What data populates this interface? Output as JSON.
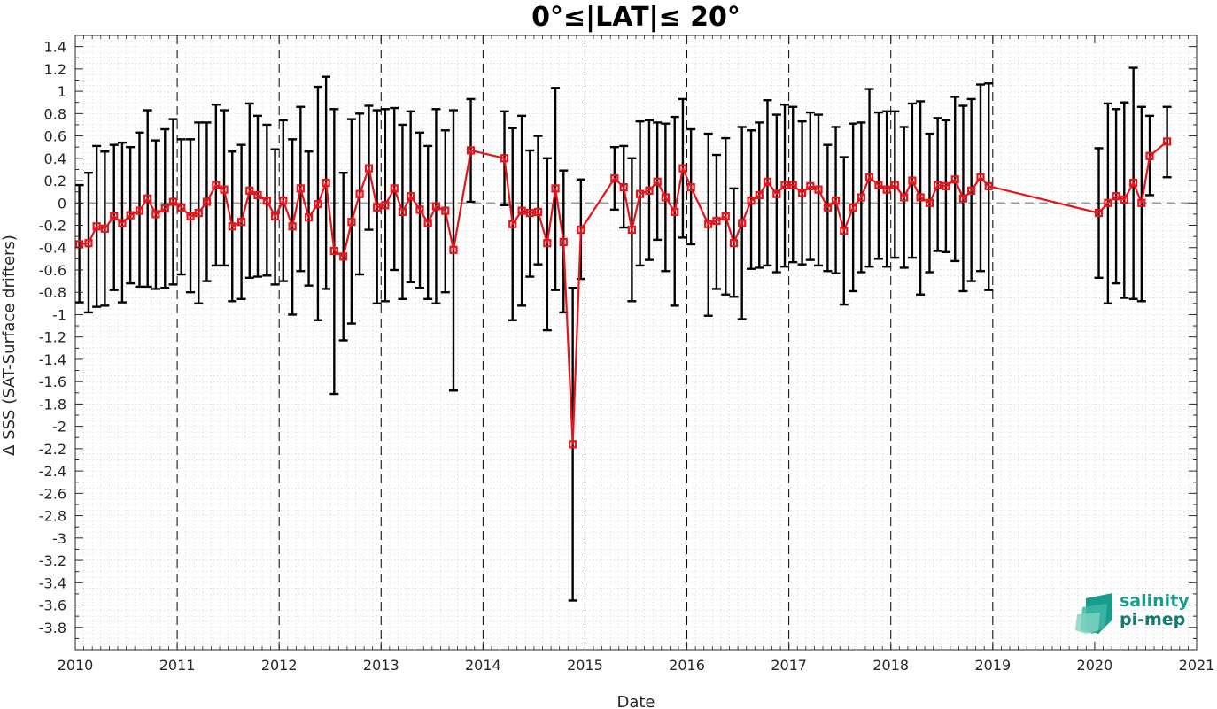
{
  "chart_data": {
    "type": "line",
    "title": "0°≤|LAT|≤ 20°",
    "xlabel": "Date",
    "ylabel": "Δ SSS (SAT-Surface drifters)",
    "xlim": [
      2010,
      2021
    ],
    "ylim": [
      -4.0,
      1.5
    ],
    "x_ticks": [
      2010,
      2011,
      2012,
      2013,
      2014,
      2015,
      2016,
      2017,
      2018,
      2019,
      2020,
      2021
    ],
    "y_ticks": [
      1.4,
      1.2,
      1,
      0.8,
      0.6,
      0.4,
      0.2,
      0,
      -0.2,
      -0.4,
      -0.6,
      -0.8,
      -1,
      -1.2,
      -1.4,
      -1.6,
      -1.8,
      -2,
      -2.2,
      -2.4,
      -2.6,
      -2.8,
      -3,
      -3.2,
      -3.4,
      -3.6,
      -3.8
    ],
    "year_lines": [
      2011,
      2012,
      2013,
      2014,
      2015,
      2016,
      2017,
      2018,
      2019
    ],
    "zero_line": 0,
    "grid": "dotted-minor",
    "colors": {
      "series": "#e8141b",
      "error_bars": "#000000",
      "zero_line": "#888888",
      "logo_primary": "#1a9c8c",
      "logo_secondary": "#127a6f"
    },
    "series": [
      {
        "marker": "square",
        "points": [
          {
            "x": 2010.04,
            "y": -0.37,
            "lo": -0.89,
            "hi": 0.16
          },
          {
            "x": 2010.13,
            "y": -0.36,
            "lo": -0.98,
            "hi": 0.27
          },
          {
            "x": 2010.21,
            "y": -0.21,
            "lo": -0.93,
            "hi": 0.51
          },
          {
            "x": 2010.29,
            "y": -0.23,
            "lo": -0.92,
            "hi": 0.46
          },
          {
            "x": 2010.38,
            "y": -0.12,
            "lo": -0.78,
            "hi": 0.52
          },
          {
            "x": 2010.46,
            "y": -0.18,
            "lo": -0.89,
            "hi": 0.54
          },
          {
            "x": 2010.54,
            "y": -0.11,
            "lo": -0.72,
            "hi": 0.5
          },
          {
            "x": 2010.63,
            "y": -0.07,
            "lo": -0.75,
            "hi": 0.63
          },
          {
            "x": 2010.71,
            "y": 0.04,
            "lo": -0.75,
            "hi": 0.83
          },
          {
            "x": 2010.79,
            "y": -0.1,
            "lo": -0.77,
            "hi": 0.56
          },
          {
            "x": 2010.88,
            "y": -0.05,
            "lo": -0.76,
            "hi": 0.66
          },
          {
            "x": 2010.96,
            "y": 0.01,
            "lo": -0.73,
            "hi": 0.75
          },
          {
            "x": 2011.04,
            "y": -0.04,
            "lo": -0.64,
            "hi": 0.57
          },
          {
            "x": 2011.13,
            "y": -0.12,
            "lo": -0.8,
            "hi": 0.57
          },
          {
            "x": 2011.21,
            "y": -0.09,
            "lo": -0.9,
            "hi": 0.72
          },
          {
            "x": 2011.29,
            "y": 0.01,
            "lo": -0.7,
            "hi": 0.72
          },
          {
            "x": 2011.38,
            "y": 0.16,
            "lo": -0.56,
            "hi": 0.88
          },
          {
            "x": 2011.46,
            "y": 0.12,
            "lo": -0.56,
            "hi": 0.83
          },
          {
            "x": 2011.54,
            "y": -0.21,
            "lo": -0.88,
            "hi": 0.46
          },
          {
            "x": 2011.63,
            "y": -0.17,
            "lo": -0.86,
            "hi": 0.52
          },
          {
            "x": 2011.71,
            "y": 0.11,
            "lo": -0.67,
            "hi": 0.89
          },
          {
            "x": 2011.79,
            "y": 0.07,
            "lo": -0.66,
            "hi": 0.78
          },
          {
            "x": 2011.88,
            "y": 0.02,
            "lo": -0.65,
            "hi": 0.7
          },
          {
            "x": 2011.96,
            "y": -0.12,
            "lo": -0.73,
            "hi": 0.48
          },
          {
            "x": 2012.04,
            "y": 0.02,
            "lo": -0.7,
            "hi": 0.74
          },
          {
            "x": 2012.13,
            "y": -0.21,
            "lo": -1.0,
            "hi": 0.57
          },
          {
            "x": 2012.21,
            "y": 0.13,
            "lo": -0.61,
            "hi": 0.86
          },
          {
            "x": 2012.29,
            "y": -0.13,
            "lo": -0.74,
            "hi": 0.46
          },
          {
            "x": 2012.38,
            "y": -0.01,
            "lo": -1.05,
            "hi": 1.04
          },
          {
            "x": 2012.46,
            "y": 0.18,
            "lo": -0.77,
            "hi": 1.13
          },
          {
            "x": 2012.54,
            "y": -0.43,
            "lo": -1.71,
            "hi": 0.84
          },
          {
            "x": 2012.63,
            "y": -0.48,
            "lo": -1.23,
            "hi": 0.27
          },
          {
            "x": 2012.71,
            "y": -0.17,
            "lo": -1.08,
            "hi": 0.75
          },
          {
            "x": 2012.79,
            "y": 0.08,
            "lo": -0.64,
            "hi": 0.8
          },
          {
            "x": 2012.88,
            "y": 0.31,
            "lo": -0.24,
            "hi": 0.87
          },
          {
            "x": 2012.96,
            "y": -0.04,
            "lo": -0.9,
            "hi": 0.83
          },
          {
            "x": 2013.04,
            "y": -0.02,
            "lo": -0.88,
            "hi": 0.84
          },
          {
            "x": 2013.13,
            "y": 0.13,
            "lo": -0.6,
            "hi": 0.85
          },
          {
            "x": 2013.21,
            "y": -0.08,
            "lo": -0.86,
            "hi": 0.7
          },
          {
            "x": 2013.29,
            "y": 0.06,
            "lo": -0.71,
            "hi": 0.82
          },
          {
            "x": 2013.38,
            "y": -0.06,
            "lo": -0.76,
            "hi": 0.63
          },
          {
            "x": 2013.46,
            "y": -0.18,
            "lo": -0.86,
            "hi": 0.51
          },
          {
            "x": 2013.54,
            "y": -0.03,
            "lo": -0.9,
            "hi": 0.84
          },
          {
            "x": 2013.63,
            "y": -0.07,
            "lo": -0.8,
            "hi": 0.65
          },
          {
            "x": 2013.71,
            "y": -0.42,
            "lo": -1.68,
            "hi": 0.83
          },
          {
            "x": 2013.88,
            "y": 0.47,
            "lo": 0.01,
            "hi": 0.93
          },
          {
            "x": 2014.21,
            "y": 0.4,
            "lo": -0.02,
            "hi": 0.82
          },
          {
            "x": 2014.29,
            "y": -0.19,
            "lo": -1.05,
            "hi": 0.67
          },
          {
            "x": 2014.38,
            "y": -0.07,
            "lo": -0.92,
            "hi": 0.78
          },
          {
            "x": 2014.46,
            "y": -0.09,
            "lo": -0.66,
            "hi": 0.47
          },
          {
            "x": 2014.54,
            "y": -0.08,
            "lo": -0.55,
            "hi": 0.6
          },
          {
            "x": 2014.63,
            "y": -0.36,
            "lo": -1.14,
            "hi": 0.4
          },
          {
            "x": 2014.71,
            "y": 0.13,
            "lo": -0.78,
            "hi": 1.03
          },
          {
            "x": 2014.79,
            "y": -0.35,
            "lo": -0.98,
            "hi": 0.29
          },
          {
            "x": 2014.88,
            "y": -2.16,
            "lo": -3.56,
            "hi": -0.76
          },
          {
            "x": 2014.96,
            "y": -0.24,
            "lo": -0.68,
            "hi": 0.21
          },
          {
            "x": 2015.29,
            "y": 0.22,
            "lo": -0.06,
            "hi": 0.5
          },
          {
            "x": 2015.38,
            "y": 0.14,
            "lo": -0.22,
            "hi": 0.51
          },
          {
            "x": 2015.46,
            "y": -0.24,
            "lo": -0.88,
            "hi": 0.4
          },
          {
            "x": 2015.54,
            "y": 0.08,
            "lo": -0.56,
            "hi": 0.73
          },
          {
            "x": 2015.63,
            "y": 0.11,
            "lo": -0.51,
            "hi": 0.74
          },
          {
            "x": 2015.71,
            "y": 0.19,
            "lo": -0.33,
            "hi": 0.72
          },
          {
            "x": 2015.79,
            "y": 0.05,
            "lo": -0.61,
            "hi": 0.71
          },
          {
            "x": 2015.88,
            "y": -0.08,
            "lo": -0.92,
            "hi": 0.77
          },
          {
            "x": 2015.96,
            "y": 0.31,
            "lo": -0.31,
            "hi": 0.93
          },
          {
            "x": 2016.04,
            "y": 0.14,
            "lo": -0.37,
            "hi": 0.66
          },
          {
            "x": 2016.21,
            "y": -0.19,
            "lo": -1.01,
            "hi": 0.62
          },
          {
            "x": 2016.29,
            "y": -0.16,
            "lo": -0.77,
            "hi": 0.43
          },
          {
            "x": 2016.38,
            "y": -0.12,
            "lo": -0.82,
            "hi": 0.58
          },
          {
            "x": 2016.46,
            "y": -0.36,
            "lo": -0.84,
            "hi": 0.13
          },
          {
            "x": 2016.54,
            "y": -0.18,
            "lo": -1.04,
            "hi": 0.68
          },
          {
            "x": 2016.63,
            "y": 0.02,
            "lo": -0.59,
            "hi": 0.65
          },
          {
            "x": 2016.71,
            "y": 0.07,
            "lo": -0.58,
            "hi": 0.72
          },
          {
            "x": 2016.79,
            "y": 0.19,
            "lo": -0.56,
            "hi": 0.92
          },
          {
            "x": 2016.88,
            "y": 0.08,
            "lo": -0.62,
            "hi": 0.79
          },
          {
            "x": 2016.96,
            "y": 0.16,
            "lo": -0.57,
            "hi": 0.88
          },
          {
            "x": 2017.04,
            "y": 0.16,
            "lo": -0.53,
            "hi": 0.86
          },
          {
            "x": 2017.13,
            "y": 0.09,
            "lo": -0.55,
            "hi": 0.73
          },
          {
            "x": 2017.21,
            "y": 0.15,
            "lo": -0.51,
            "hi": 0.81
          },
          {
            "x": 2017.29,
            "y": 0.12,
            "lo": -0.56,
            "hi": 0.79
          },
          {
            "x": 2017.38,
            "y": -0.04,
            "lo": -0.61,
            "hi": 0.52
          },
          {
            "x": 2017.46,
            "y": 0.02,
            "lo": -0.63,
            "hi": 0.68
          },
          {
            "x": 2017.54,
            "y": -0.25,
            "lo": -0.91,
            "hi": 0.41
          },
          {
            "x": 2017.63,
            "y": -0.04,
            "lo": -0.79,
            "hi": 0.71
          },
          {
            "x": 2017.71,
            "y": 0.05,
            "lo": -0.62,
            "hi": 0.72
          },
          {
            "x": 2017.79,
            "y": 0.23,
            "lo": -0.57,
            "hi": 1.02
          },
          {
            "x": 2017.88,
            "y": 0.16,
            "lo": -0.5,
            "hi": 0.81
          },
          {
            "x": 2017.96,
            "y": 0.12,
            "lo": -0.57,
            "hi": 0.82
          },
          {
            "x": 2018.04,
            "y": 0.16,
            "lo": -0.49,
            "hi": 0.82
          },
          {
            "x": 2018.13,
            "y": 0.05,
            "lo": -0.58,
            "hi": 0.68
          },
          {
            "x": 2018.21,
            "y": 0.2,
            "lo": -0.49,
            "hi": 0.89
          },
          {
            "x": 2018.29,
            "y": 0.05,
            "lo": -0.82,
            "hi": 0.91
          },
          {
            "x": 2018.38,
            "y": 0.0,
            "lo": -0.62,
            "hi": 0.62
          },
          {
            "x": 2018.46,
            "y": 0.16,
            "lo": -0.43,
            "hi": 0.76
          },
          {
            "x": 2018.54,
            "y": 0.15,
            "lo": -0.44,
            "hi": 0.74
          },
          {
            "x": 2018.63,
            "y": 0.21,
            "lo": -0.52,
            "hi": 0.95
          },
          {
            "x": 2018.71,
            "y": 0.04,
            "lo": -0.79,
            "hi": 0.87
          },
          {
            "x": 2018.79,
            "y": 0.11,
            "lo": -0.7,
            "hi": 0.93
          },
          {
            "x": 2018.88,
            "y": 0.23,
            "lo": -0.61,
            "hi": 1.06
          },
          {
            "x": 2018.96,
            "y": 0.15,
            "lo": -0.78,
            "hi": 1.07
          },
          {
            "x": 2020.04,
            "y": -0.09,
            "lo": -0.67,
            "hi": 0.49
          },
          {
            "x": 2020.13,
            "y": 0.0,
            "lo": -0.9,
            "hi": 0.89
          },
          {
            "x": 2020.21,
            "y": 0.06,
            "lo": -0.72,
            "hi": 0.84
          },
          {
            "x": 2020.29,
            "y": 0.03,
            "lo": -0.85,
            "hi": 0.9
          },
          {
            "x": 2020.38,
            "y": 0.18,
            "lo": -0.86,
            "hi": 1.21
          },
          {
            "x": 2020.46,
            "y": 0.0,
            "lo": -0.88,
            "hi": 0.86
          },
          {
            "x": 2020.54,
            "y": 0.42,
            "lo": 0.07,
            "hi": 0.78
          },
          {
            "x": 2020.71,
            "y": 0.55,
            "lo": 0.23,
            "hi": 0.86
          }
        ]
      }
    ]
  },
  "logo": {
    "line1": "salinity",
    "line2": "pi-mep"
  }
}
